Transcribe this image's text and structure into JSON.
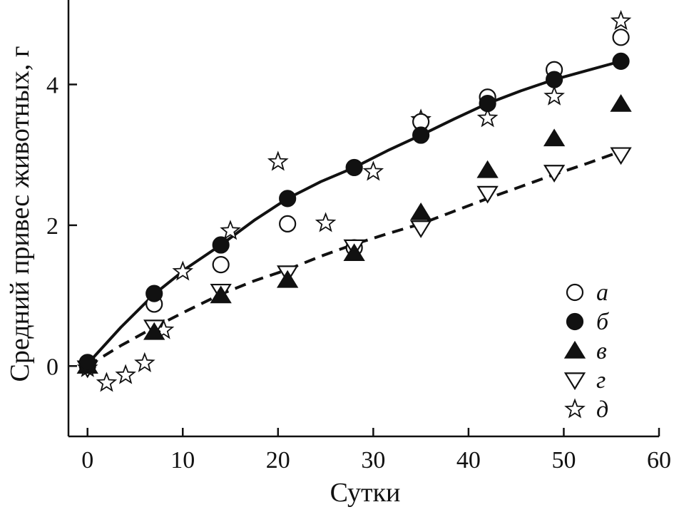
{
  "chart_data": {
    "type": "scatter",
    "xlabel": "Сутки",
    "ylabel": "Средний привес животных, г",
    "xlim": [
      -2,
      60
    ],
    "ylim": [
      -1,
      5.2
    ],
    "xticks": [
      0,
      10,
      20,
      30,
      40,
      50,
      60
    ],
    "yticks": [
      0,
      2,
      4
    ],
    "grid": false,
    "legend_position": "bottom-right",
    "series": [
      {
        "name": "а",
        "marker": "circle-open",
        "x": [
          0,
          7,
          14,
          21,
          28,
          35,
          42,
          49,
          56
        ],
        "y": [
          0,
          0.88,
          1.44,
          2.02,
          1.68,
          3.47,
          3.82,
          4.21,
          4.67
        ]
      },
      {
        "name": "б",
        "marker": "circle-filled",
        "x": [
          0,
          7,
          14,
          21,
          28,
          35,
          42,
          49,
          56
        ],
        "y": [
          0.05,
          1.03,
          1.72,
          2.38,
          2.82,
          3.28,
          3.73,
          4.07,
          4.33
        ]
      },
      {
        "name": "в",
        "marker": "triangle-up-filled",
        "x": [
          0,
          7,
          14,
          21,
          28,
          35,
          42,
          49,
          56
        ],
        "y": [
          0,
          0.48,
          1.0,
          1.22,
          1.6,
          2.18,
          2.78,
          3.23,
          3.72
        ]
      },
      {
        "name": "г",
        "marker": "triangle-down-open",
        "x": [
          0,
          7,
          14,
          21,
          28,
          35,
          42,
          49,
          56
        ],
        "y": [
          -0.03,
          0.55,
          1.06,
          1.32,
          1.69,
          1.96,
          2.45,
          2.75,
          3.0
        ]
      },
      {
        "name": "д",
        "marker": "star-open",
        "x": [
          0,
          2,
          4,
          6,
          8,
          10,
          15,
          20,
          25,
          30,
          35,
          42,
          49,
          56
        ],
        "y": [
          -0.03,
          -0.24,
          -0.13,
          0.04,
          0.51,
          1.34,
          1.92,
          2.9,
          2.03,
          2.76,
          3.5,
          3.52,
          3.83,
          4.9
        ]
      }
    ],
    "fit_lines": [
      {
        "series": "б",
        "style": "solid",
        "x": [
          0,
          3.5,
          7,
          10.5,
          14,
          17.5,
          21,
          24.5,
          28,
          31.5,
          35,
          38.5,
          42,
          45.5,
          49,
          52.5,
          56
        ],
        "y": [
          0.03,
          0.55,
          1.02,
          1.4,
          1.72,
          2.07,
          2.38,
          2.62,
          2.82,
          3.06,
          3.28,
          3.51,
          3.73,
          3.91,
          4.07,
          4.2,
          4.33
        ]
      },
      {
        "series": "г",
        "style": "dashed",
        "x": [
          0,
          3.5,
          7,
          10.5,
          14,
          17.5,
          21,
          24.5,
          28,
          31.5,
          35,
          38.5,
          42,
          45.5,
          49,
          52.5,
          56
        ],
        "y": [
          0.0,
          0.29,
          0.55,
          0.79,
          1.02,
          1.21,
          1.37,
          1.56,
          1.73,
          1.88,
          2.02,
          2.2,
          2.38,
          2.55,
          2.72,
          2.88,
          3.05
        ]
      }
    ]
  }
}
